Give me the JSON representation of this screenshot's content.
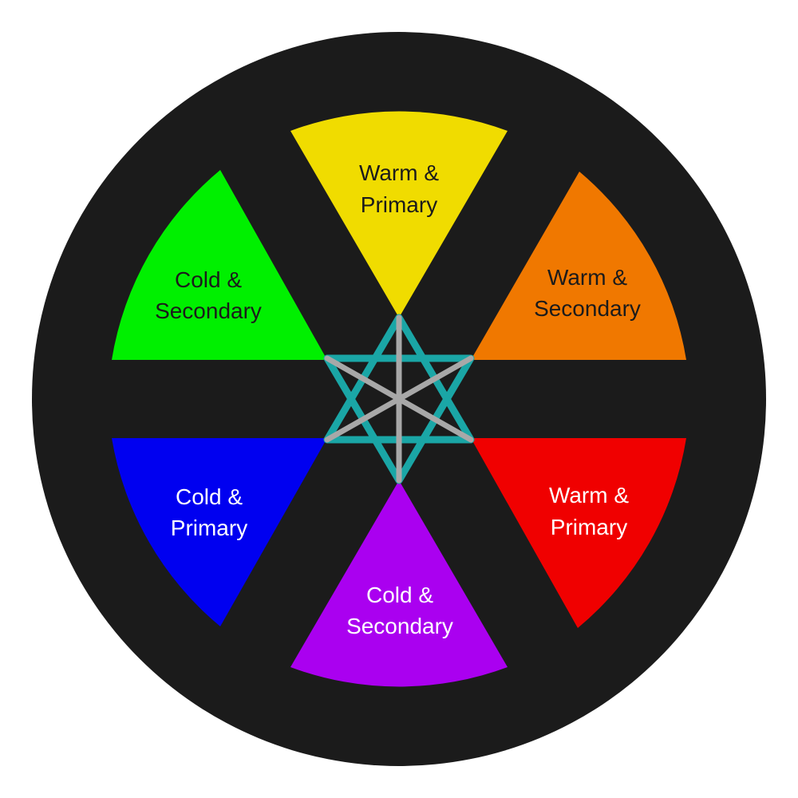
{
  "diagram": {
    "background_color": "#1b1b1b",
    "segments": [
      {
        "id": "top",
        "line1": "Warm &",
        "line2": "Primary",
        "color": "#f0dc00",
        "text_color": "#1b1b1b"
      },
      {
        "id": "upper-right",
        "line1": "Warm &",
        "line2": "Secondary",
        "color": "#f07800",
        "text_color": "#1b1b1b"
      },
      {
        "id": "lower-right",
        "line1": "Warm &",
        "line2": "Primary",
        "color": "#f00000",
        "text_color": "#ffffff"
      },
      {
        "id": "bottom",
        "line1": "Cold &",
        "line2": "Secondary",
        "color": "#aa00f0",
        "text_color": "#ffffff"
      },
      {
        "id": "lower-left",
        "line1": "Cold &",
        "line2": "Primary",
        "color": "#0000f0",
        "text_color": "#ffffff"
      },
      {
        "id": "upper-left",
        "line1": "Cold &",
        "line2": "Secondary",
        "color": "#00f000",
        "text_color": "#1b1b1b"
      }
    ],
    "center": {
      "hexagram_color": "#1aa6a6",
      "spoke_color": "#a8a8a8"
    }
  }
}
